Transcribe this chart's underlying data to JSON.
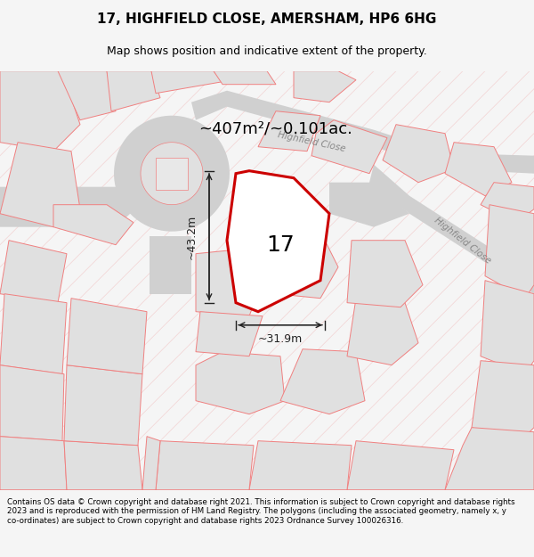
{
  "title": "17, HIGHFIELD CLOSE, AMERSHAM, HP6 6HG",
  "subtitle": "Map shows position and indicative extent of the property.",
  "footer": "Contains OS data © Crown copyright and database right 2021. This information is subject to Crown copyright and database rights 2023 and is reproduced with the permission of HM Land Registry. The polygons (including the associated geometry, namely x, y co-ordinates) are subject to Crown copyright and database rights 2023 Ordnance Survey 100026316.",
  "area_label": "~407m²/~0.101ac.",
  "property_number": "17",
  "width_label": "~31.9m",
  "height_label": "~43.2m",
  "bg_color": "#f5f5f5",
  "map_bg": "#ffffff",
  "plot_edge_color": "#cc0000",
  "surround_plot_facecolor": "#e0e0e0",
  "surround_plot_edgecolor": "#f08080",
  "road_facecolor": "#d0d0d0",
  "diag_line_color": "#f0b0b0",
  "street_label_color": "#888888",
  "street_label1": "Highfield Close",
  "street_label2": "Highfield Close",
  "dim_line_color": "#222222"
}
